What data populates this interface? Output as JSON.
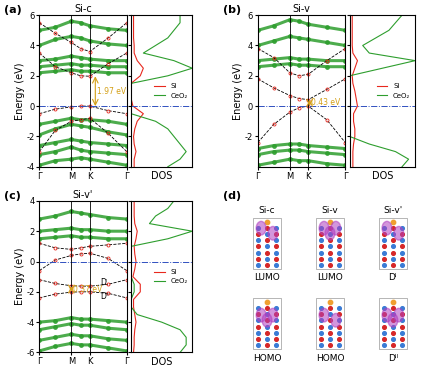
{
  "chart_data": {
    "type": "band_structure",
    "ylabel": "Energy (eV)",
    "dos_xlabel": "DOS",
    "kpath": {
      "x": [
        0,
        0.5,
        1.0,
        1.289,
        1.577,
        2.155,
        2.732
      ],
      "xlim": [
        0,
        2.732
      ],
      "xticks": [
        {
          "value": 0,
          "label": "Γ"
        },
        {
          "value": 1.0,
          "label": "M"
        },
        {
          "value": 1.577,
          "label": "K"
        },
        {
          "value": 2.732,
          "label": "Γ"
        }
      ]
    },
    "panels": [
      {
        "label": "(a)",
        "title": "Si-c",
        "ylim": [
          -4,
          6
        ],
        "yticks": [
          -4,
          -2,
          0,
          2,
          4,
          6
        ],
        "fermi_level": 0,
        "bands": [
          {
            "name": "CeO₂",
            "color": "#2e9e2e",
            "line_style": "solid",
            "marker": "o",
            "values": [
              [
                -3.9,
                -3.6,
                -3.5,
                -3.4,
                -3.5,
                -3.7,
                -3.9
              ],
              [
                -3.2,
                -3.0,
                -2.7,
                -2.9,
                -3.0,
                -3.1,
                -3.2
              ],
              [
                -2.6,
                -2.4,
                -2.2,
                -2.3,
                -2.4,
                -2.5,
                -2.6
              ],
              [
                -1.9,
                -1.5,
                -1.2,
                -1.3,
                -1.4,
                -1.7,
                -1.9
              ],
              [
                -1.2,
                -1.0,
                -0.8,
                -0.9,
                -0.9,
                -1.0,
                -1.2
              ],
              [
                2.2,
                2.3,
                2.4,
                2.3,
                2.3,
                2.2,
                2.2
              ],
              [
                2.6,
                2.7,
                2.8,
                2.7,
                2.7,
                2.6,
                2.6
              ],
              [
                3.0,
                3.1,
                3.3,
                3.2,
                3.1,
                3.0,
                3.0
              ],
              [
                4.0,
                4.4,
                4.6,
                4.5,
                4.3,
                4.1,
                4.0
              ],
              [
                5.0,
                5.2,
                5.6,
                5.5,
                5.3,
                5.1,
                5.0
              ]
            ]
          },
          {
            "name": "Si",
            "color": "#e8281e",
            "line_style": "dashed",
            "marker": "o",
            "values": [
              [
                -0.5,
                -0.2,
                -0.05,
                0.0,
                0.0,
                -0.3,
                -0.5
              ],
              [
                -3.0,
                -1.6,
                -1.0,
                -0.9,
                -0.8,
                -1.8,
                -3.0
              ],
              [
                3.5,
                2.6,
                2.2,
                2.0,
                1.97,
                2.8,
                3.5
              ],
              [
                5.5,
                4.8,
                4.2,
                3.8,
                3.6,
                4.5,
                5.5
              ]
            ]
          }
        ],
        "gaps": [
          {
            "label": "1.97 eV",
            "value": 1.97,
            "k": 1.75,
            "from": 0
          }
        ],
        "levels": [],
        "dos": {
          "energies": [
            -4,
            -3.5,
            -3,
            -2.5,
            -2,
            -1.5,
            -1,
            -0.5,
            0,
            0.5,
            1,
            1.5,
            2,
            2.5,
            3,
            3.5,
            4,
            4.5,
            5,
            5.5,
            6
          ],
          "xlim": [
            0,
            10
          ],
          "tick_labels": false,
          "legend": "center right",
          "series": [
            {
              "name": "Si",
              "color": "#e8281e",
              "values": [
                0.5,
                0.5,
                0.8,
                0.5,
                0.4,
                0.6,
                1,
                2,
                0.3,
                0,
                0,
                0,
                1.5,
                2,
                1,
                0.5,
                0.5,
                0.4,
                0.4,
                0.4,
                0.4
              ]
            },
            {
              "name": "CeO₂",
              "color": "#2e9e2e",
              "values": [
                6,
                8,
                9,
                8,
                7,
                6,
                4,
                0,
                0,
                0,
                0,
                0,
                6,
                10,
                7,
                2,
                4,
                6,
                7,
                8,
                8
              ]
            }
          ]
        }
      },
      {
        "label": "(b)",
        "title": "Si-v",
        "ylim": [
          -4,
          6
        ],
        "yticks": [
          -2,
          0,
          2,
          4,
          6
        ],
        "fermi_level": 0,
        "bands": [
          {
            "name": "CeO₂",
            "color": "#2e9e2e",
            "line_style": "solid",
            "marker": "o",
            "values": [
              [
                -3.9,
                -3.7,
                -3.5,
                -3.6,
                -3.6,
                -3.8,
                -3.9
              ],
              [
                -3.2,
                -3.0,
                -2.9,
                -2.9,
                -3.0,
                -3.1,
                -3.2
              ],
              [
                -2.8,
                -2.6,
                -2.5,
                -2.5,
                -2.6,
                -2.7,
                -2.8
              ],
              [
                2.6,
                2.7,
                2.8,
                2.7,
                2.7,
                2.6,
                2.6
              ],
              [
                3.0,
                3.1,
                3.2,
                3.1,
                3.1,
                3.0,
                3.0
              ],
              [
                4.0,
                4.3,
                4.6,
                4.5,
                4.4,
                4.2,
                4.0
              ],
              [
                5.0,
                5.3,
                5.7,
                5.6,
                5.4,
                5.2,
                5.0
              ]
            ]
          },
          {
            "name": "Si",
            "color": "#e8281e",
            "line_style": "dashed",
            "marker": "o",
            "values": [
              [
                -2.4,
                -1.2,
                -0.4,
                -0.1,
                0.0,
                -0.9,
                -2.4
              ],
              [
                1.8,
                1.2,
                0.7,
                0.5,
                0.43,
                1.1,
                1.8
              ],
              [
                3.8,
                3.2,
                2.2,
                2.0,
                2.1,
                3.0,
                3.8
              ]
            ]
          }
        ],
        "gaps": [
          {
            "label": "0.43 eV",
            "value": 0.43,
            "k": 1.62,
            "from": 0
          }
        ],
        "levels": [],
        "dos": {
          "energies": [
            -4,
            -3.5,
            -3,
            -2.5,
            -2,
            -1.5,
            -1,
            -0.5,
            0,
            0.5,
            1,
            1.5,
            2,
            2.5,
            3,
            3.5,
            4,
            4.5,
            5,
            5.5,
            6
          ],
          "xlim": [
            0,
            10
          ],
          "tick_labels": false,
          "legend": "center right",
          "series": [
            {
              "name": "Si",
              "color": "#e8281e",
              "values": [
                0.5,
                0.5,
                0.5,
                0.6,
                0.8,
                0.8,
                0.6,
                0.6,
                1.2,
                1.0,
                0.8,
                0.5,
                0.4,
                0.8,
                1.2,
                0.5,
                0.4,
                0.4,
                0.4,
                0.4,
                0.4
              ]
            },
            {
              "name": "CeO₂",
              "color": "#2e9e2e",
              "values": [
                8,
                9,
                7,
                3,
                0,
                0,
                0,
                0,
                0,
                0,
                0,
                0,
                0,
                5,
                10,
                3,
                2,
                4,
                6,
                7,
                8
              ]
            }
          ]
        }
      },
      {
        "label": "(c)",
        "title": "Si-v'",
        "ylim": [
          -6,
          4
        ],
        "yticks": [
          -6,
          -4,
          -2,
          0,
          2,
          4
        ],
        "fermi_level": 0,
        "bands": [
          {
            "name": "CeO₂",
            "color": "#2e9e2e",
            "line_style": "solid",
            "marker": "o",
            "values": [
              [
                -5.9,
                -5.6,
                -5.4,
                -5.5,
                -5.5,
                -5.7,
                -5.9
              ],
              [
                -5.2,
                -5.0,
                -4.8,
                -4.9,
                -4.9,
                -5.1,
                -5.2
              ],
              [
                -4.5,
                -4.3,
                -4.1,
                -4.2,
                -4.2,
                -4.4,
                -4.5
              ],
              [
                -4.0,
                -3.9,
                -3.7,
                -3.8,
                -3.8,
                -3.9,
                -4.0
              ],
              [
                1.5,
                1.6,
                1.7,
                1.6,
                1.6,
                1.5,
                1.5
              ],
              [
                2.0,
                2.1,
                2.2,
                2.1,
                2.1,
                2.0,
                2.0
              ],
              [
                2.8,
                3.0,
                3.3,
                3.2,
                3.1,
                2.9,
                2.8
              ]
            ]
          },
          {
            "name": "Si",
            "color": "#e8281e",
            "line_style": "dashed",
            "marker": "o",
            "values": [
              [
                -1.2,
                -1.45,
                -1.6,
                -1.62,
                -1.63,
                -1.5,
                -1.2
              ],
              [
                -2.4,
                -2.15,
                -2.02,
                -2.0,
                -2.0,
                -2.1,
                -2.4
              ],
              [
                -0.6,
                0.1,
                0.4,
                0.5,
                0.55,
                0.2,
                -0.6
              ],
              [
                1.2,
                0.9,
                0.8,
                0.9,
                1.0,
                1.1,
                1.2
              ]
            ]
          }
        ],
        "gaps": [
          {
            "label": "0.37 eV",
            "value": 0.37,
            "k": 1.0,
            "from": -2.0
          }
        ],
        "levels": [
          {
            "label": "Dᴵ",
            "k": 1.9,
            "energy": -1.4
          },
          {
            "label": "Dᴵᴵ",
            "k": 1.9,
            "energy": -2.3
          }
        ],
        "dos": {
          "energies": [
            -6,
            -5.5,
            -5,
            -4.5,
            -4,
            -3.5,
            -3,
            -2.5,
            -2,
            -1.5,
            -1,
            -0.5,
            0,
            0.5,
            1,
            1.5,
            2,
            2.5,
            3,
            3.5,
            4
          ],
          "xlim": [
            0,
            10
          ],
          "tick_labels": false,
          "legend": "center right",
          "series": [
            {
              "name": "Si",
              "color": "#e8281e",
              "values": [
                0.4,
                0.5,
                0.5,
                0.6,
                0.8,
                0.6,
                0.4,
                0.4,
                1.5,
                1.5,
                0.3,
                0.6,
                0.8,
                0.6,
                0.5,
                0.8,
                1.0,
                0.6,
                0.5,
                0.5,
                0.5
              ]
            },
            {
              "name": "CeO₂",
              "color": "#2e9e2e",
              "values": [
                8,
                9,
                9,
                8,
                5,
                1,
                0,
                0,
                0.5,
                0.5,
                0,
                0,
                0,
                0,
                0,
                6,
                10,
                3,
                4,
                6,
                7
              ]
            }
          ]
        }
      }
    ],
    "structures": {
      "label": "(d)",
      "columns": [
        "Si-c",
        "Si-v",
        "Si-v'"
      ],
      "rows": [
        [
          "LUMO",
          "LUMO",
          "Dᴵ"
        ],
        [
          "HOMO",
          "HOMO",
          "Dᴵᴵ"
        ]
      ]
    }
  }
}
